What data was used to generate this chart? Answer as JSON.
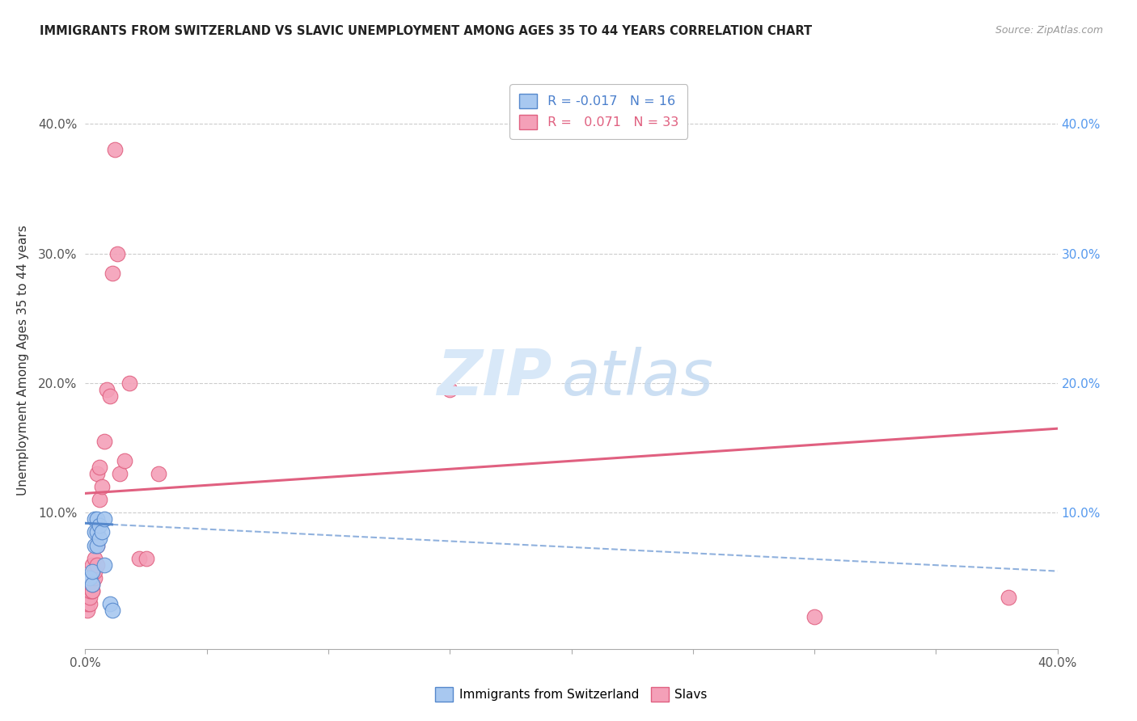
{
  "title": "IMMIGRANTS FROM SWITZERLAND VS SLAVIC UNEMPLOYMENT AMONG AGES 35 TO 44 YEARS CORRELATION CHART",
  "source": "Source: ZipAtlas.com",
  "ylabel": "Unemployment Among Ages 35 to 44 years",
  "xlim": [
    0.0,
    0.4
  ],
  "ylim": [
    -0.005,
    0.44
  ],
  "background_color": "#ffffff",
  "grid_color": "#cccccc",
  "swiss_color": "#A8C8F0",
  "slavic_color": "#F4A0B8",
  "swiss_line_color": "#5588CC",
  "slavic_line_color": "#E06080",
  "swiss_x": [
    0.002,
    0.003,
    0.003,
    0.004,
    0.004,
    0.004,
    0.005,
    0.005,
    0.005,
    0.006,
    0.006,
    0.007,
    0.008,
    0.008,
    0.01,
    0.011
  ],
  "swiss_y": [
    0.05,
    0.045,
    0.055,
    0.075,
    0.085,
    0.095,
    0.075,
    0.085,
    0.095,
    0.08,
    0.09,
    0.085,
    0.06,
    0.095,
    0.03,
    0.025
  ],
  "slavic_x": [
    0.001,
    0.001,
    0.002,
    0.002,
    0.002,
    0.003,
    0.003,
    0.003,
    0.003,
    0.004,
    0.004,
    0.004,
    0.005,
    0.005,
    0.005,
    0.006,
    0.006,
    0.007,
    0.008,
    0.009,
    0.01,
    0.011,
    0.012,
    0.013,
    0.014,
    0.016,
    0.018,
    0.022,
    0.025,
    0.03,
    0.15,
    0.3,
    0.38
  ],
  "slavic_y": [
    0.025,
    0.03,
    0.03,
    0.035,
    0.04,
    0.04,
    0.04,
    0.045,
    0.06,
    0.05,
    0.055,
    0.065,
    0.06,
    0.075,
    0.13,
    0.11,
    0.135,
    0.12,
    0.155,
    0.195,
    0.19,
    0.285,
    0.38,
    0.3,
    0.13,
    0.14,
    0.2,
    0.065,
    0.065,
    0.13,
    0.195,
    0.02,
    0.035
  ],
  "swiss_trend_x": [
    0.0,
    0.4
  ],
  "swiss_trend_y_start": 0.092,
  "swiss_trend_y_end": 0.055,
  "slavic_trend_y_start": 0.115,
  "slavic_trend_y_end": 0.165,
  "ytick_positions": [
    0.0,
    0.1,
    0.2,
    0.3,
    0.4
  ],
  "ytick_labels_left": [
    "",
    "10.0%",
    "20.0%",
    "30.0%",
    "40.0%"
  ],
  "ytick_labels_right": [
    "",
    "10.0%",
    "20.0%",
    "30.0%",
    "40.0%"
  ],
  "xtick_positions": [
    0.0,
    0.05,
    0.1,
    0.15,
    0.2,
    0.25,
    0.3,
    0.35,
    0.4
  ],
  "xtick_labels": [
    "0.0%",
    "",
    "",
    "",
    "",
    "",
    "",
    "",
    "40.0%"
  ]
}
